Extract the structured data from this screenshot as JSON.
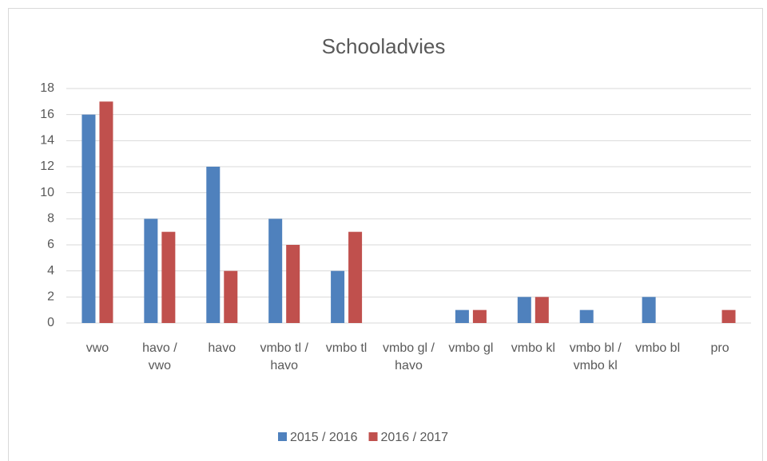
{
  "chart_data": {
    "type": "bar",
    "title": "Schooladvies",
    "categories": [
      "vwo",
      "havo / vwo",
      "havo",
      "vmbo tl / havo",
      "vmbo tl",
      "vmbo gl / havo",
      "vmbo gl",
      "vmbo kl",
      "vmbo bl / vmbo kl",
      "vmbo bl",
      "pro"
    ],
    "series": [
      {
        "name": "2015 / 2016",
        "color": "#4f81bd",
        "values": [
          16,
          8,
          12,
          8,
          4,
          0,
          1,
          2,
          1,
          2,
          0
        ]
      },
      {
        "name": "2016 / 2017",
        "color": "#c0504d",
        "values": [
          17,
          7,
          4,
          6,
          7,
          0,
          1,
          2,
          0,
          0,
          1
        ]
      }
    ],
    "ylim": [
      0,
      18
    ],
    "yticks": [
      0,
      2,
      4,
      6,
      8,
      10,
      12,
      14,
      16,
      18
    ],
    "grid": true,
    "legend": "bottom"
  }
}
